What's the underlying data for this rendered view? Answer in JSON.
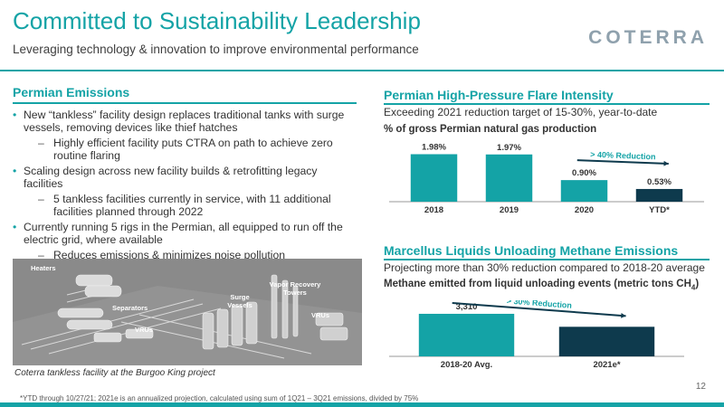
{
  "header": {
    "title": "Committed to Sustainability Leadership",
    "subtitle": "Leveraging technology & innovation to improve environmental performance",
    "logo": "COTERRA"
  },
  "left": {
    "heading": "Permian Emissions",
    "bullets": [
      {
        "level": 1,
        "text": "New “tankless” facility design replaces traditional tanks with surge vessels, removing devices like thief hatches"
      },
      {
        "level": 2,
        "text": "Highly efficient facility puts CTRA on path to achieve zero routine flaring"
      },
      {
        "level": 1,
        "text": "Scaling design across new facility builds & retrofitting legacy facilities"
      },
      {
        "level": 2,
        "text": "5 tankless facilities currently in service, with 11 additional facilities planned through 2022"
      },
      {
        "level": 1,
        "text": "Currently running 5 rigs in the Permian, all equipped to run off the electric grid, where available"
      },
      {
        "level": 2,
        "text": "Reduces emissions & minimizes noise pollution"
      }
    ],
    "image_labels": {
      "heaters": "Heaters",
      "separators": "Separators",
      "vrus_left": "VRUs",
      "surge": "Surge Vessels",
      "vapor": "Vapor Recovery Towers",
      "vrus_right": "VRUs"
    },
    "caption": "Coterra tankless facility at the Burgoo King project"
  },
  "right": {
    "flare": {
      "title": "Permian High-Pressure Flare Intensity",
      "subtitle": "Exceeding 2021 reduction target of 15-30%, year-to-date",
      "measure": "% of gross Permian natural gas production"
    },
    "methane": {
      "title": "Marcellus Liquids Unloading Methane Emissions",
      "subtitle": "Projecting more than 30% reduction compared to 2018-20 average",
      "measure_prefix": "Methane emitted from liquid unloading events (metric tons CH",
      "measure_sub": "4",
      "measure_suffix": ")"
    }
  },
  "chart_data": [
    {
      "type": "bar",
      "categories": [
        "2018",
        "2019",
        "2020",
        "YTD*"
      ],
      "values": [
        1.98,
        1.97,
        0.9,
        0.53
      ],
      "value_labels": [
        "1.98%",
        "1.97%",
        "0.90%",
        "0.53%"
      ],
      "bar_colors": [
        "#14a3a6",
        "#14a3a6",
        "#14a3a6",
        "#0e3a4d"
      ],
      "annotation": "> 40% Reduction",
      "ylim": [
        0,
        2.3
      ]
    },
    {
      "type": "bar",
      "categories": [
        "2018-20 Avg.",
        "2021e*"
      ],
      "values": [
        3310,
        2300
      ],
      "value_labels": [
        "3,310",
        ""
      ],
      "bar_colors": [
        "#14a3a6",
        "#0e3a4d"
      ],
      "annotation": "> 30% Reduction",
      "ylim": [
        0,
        3800
      ]
    }
  ],
  "footer": {
    "footnote": "*YTD through 10/27/21; 2021e is an annualized projection, calculated using sum of 1Q21 – 3Q21 emissions, divided by 75%",
    "page": "12"
  },
  "colors": {
    "accent": "#14a3a6",
    "dark": "#0e3a4d",
    "logo": "#8fa1ad"
  }
}
